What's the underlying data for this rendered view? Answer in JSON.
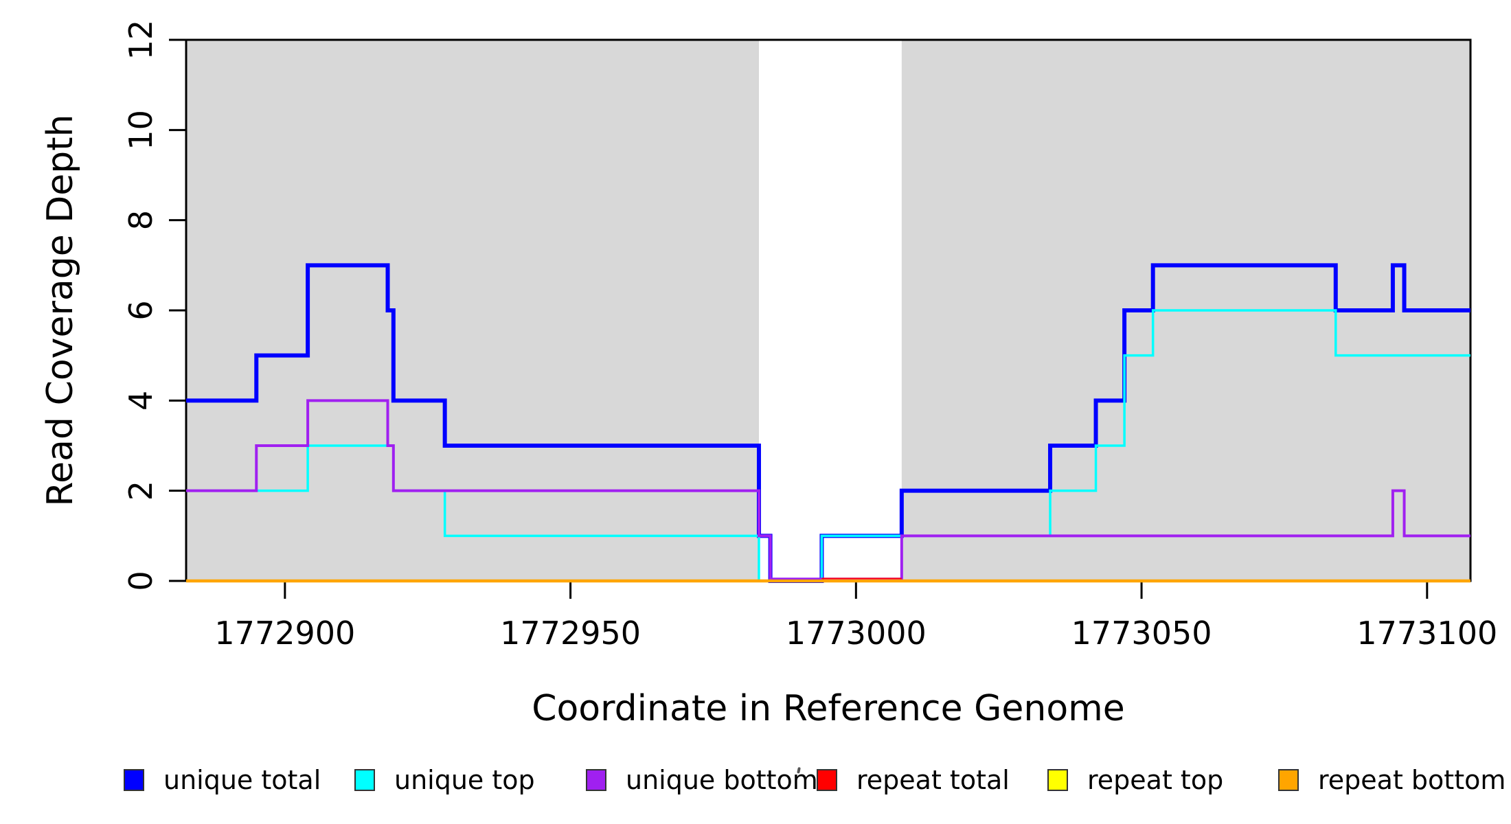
{
  "figure": {
    "background": "#ffffff",
    "axis_color": "#000000"
  },
  "chart_data": {
    "type": "line",
    "subtype": "step-post",
    "title": "",
    "xlabel": "Coordinate in Reference Genome",
    "ylabel": "Read Coverage Depth",
    "xlim": [
      1772882.7,
      1773107.6
    ],
    "ylim": [
      0,
      12
    ],
    "x_ticks": [
      1772900,
      1772950,
      1773000,
      1773050,
      1773100
    ],
    "y_ticks": [
      0,
      2,
      4,
      6,
      8,
      10,
      12
    ],
    "grid": false,
    "shade_color": "#d8d8d8",
    "shaded_regions": [
      {
        "from": 1772882.7,
        "to": 1772983
      },
      {
        "from": 1773008,
        "to": 1773107.6
      }
    ],
    "series": [
      {
        "name": "unique total",
        "color": "#0000ff",
        "width": 6,
        "steps": [
          [
            1772882.7,
            4
          ],
          [
            1772895,
            5
          ],
          [
            1772904,
            7
          ],
          [
            1772918,
            6
          ],
          [
            1772919,
            4
          ],
          [
            1772928,
            3
          ],
          [
            1772983,
            1
          ],
          [
            1772985,
            0
          ],
          [
            1772994,
            1
          ],
          [
            1773008,
            2
          ],
          [
            1773034,
            3
          ],
          [
            1773042,
            4
          ],
          [
            1773047,
            6
          ],
          [
            1773052,
            7
          ],
          [
            1773084,
            6
          ],
          [
            1773094,
            7
          ],
          [
            1773096,
            6
          ]
        ]
      },
      {
        "name": "unique top",
        "color": "#00ffff",
        "width": 3.5,
        "steps": [
          [
            1772882.7,
            2
          ],
          [
            1772904,
            3
          ],
          [
            1772919,
            2
          ],
          [
            1772928,
            1
          ],
          [
            1772983,
            0
          ],
          [
            1772994,
            1
          ],
          [
            1773034,
            2
          ],
          [
            1773042,
            3
          ],
          [
            1773047,
            5
          ],
          [
            1773052,
            6
          ],
          [
            1773084,
            5
          ]
        ]
      },
      {
        "name": "unique bottom",
        "color": "#a020f0",
        "width": 4,
        "steps": [
          [
            1772882.7,
            2
          ],
          [
            1772895,
            3
          ],
          [
            1772904,
            4
          ],
          [
            1772918,
            3
          ],
          [
            1772919,
            2
          ],
          [
            1772983,
            1
          ],
          [
            1772985,
            0
          ],
          [
            1773008,
            1
          ],
          [
            1773094,
            2
          ],
          [
            1773096,
            1
          ]
        ]
      },
      {
        "name": "repeat total",
        "color": "#ff0000",
        "width": 3.5,
        "steps": [
          [
            1772882.7,
            0
          ]
        ]
      },
      {
        "name": "repeat top",
        "color": "#ffff00",
        "width": 3.5,
        "steps": [
          [
            1772882.7,
            0
          ]
        ]
      },
      {
        "name": "repeat bottom",
        "color": "#ffa500",
        "width": 4.5,
        "steps": [
          [
            1772882.7,
            0
          ]
        ]
      }
    ],
    "baseline_fringes": [
      {
        "color": "#a020f0",
        "from": 1772985,
        "to": 1773008,
        "width": 2.5
      },
      {
        "color": "#ff0000",
        "from": 1772994,
        "to": 1773008,
        "width": 2
      }
    ],
    "legend": [
      {
        "label": "unique total",
        "color": "#0000ff"
      },
      {
        "label": "unique top",
        "color": "#00ffff"
      },
      {
        "label": "unique bottom",
        "color": "#a020f0"
      },
      {
        "label": "repeat total",
        "color": "#ff0000"
      },
      {
        "label": "repeat top",
        "color": "#ffff00"
      },
      {
        "label": "repeat bottom",
        "color": "#ffa500"
      }
    ],
    "stray_mark": {
      "x": 1162,
      "y": 1117
    }
  }
}
